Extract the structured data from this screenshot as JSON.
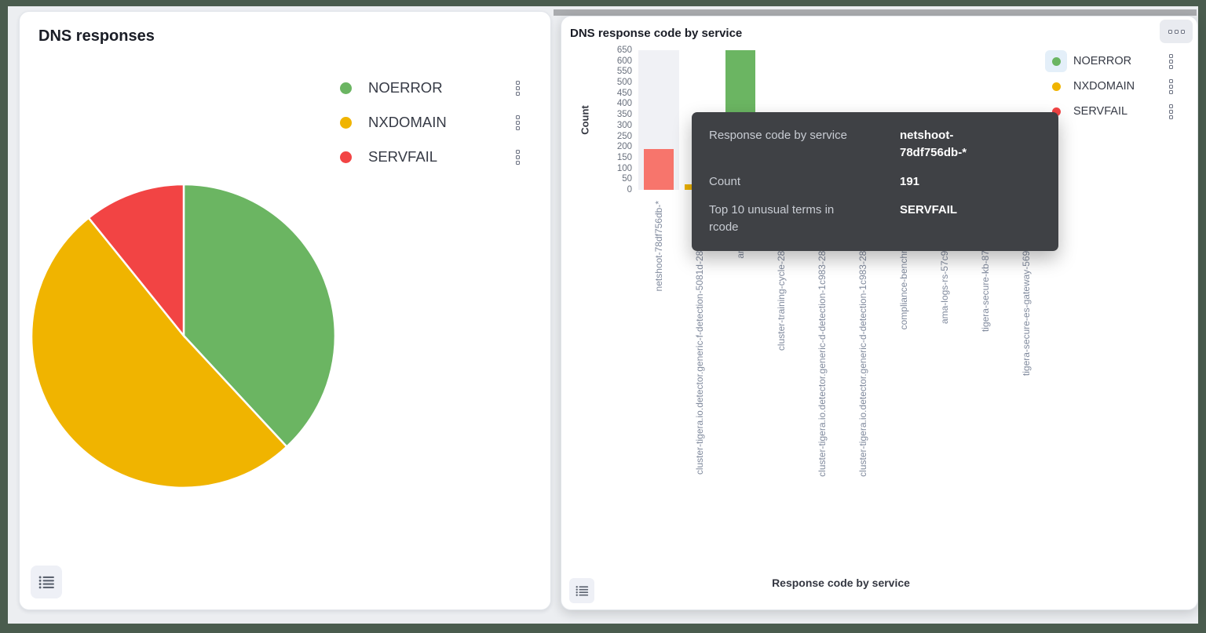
{
  "colors": {
    "green": "#6BB562",
    "yellow": "#F0B400",
    "red": "#F24444",
    "servfail_hover": "#F7756C",
    "frame": "#4A5C4E",
    "canvas_bg": "#ECEEF1",
    "panel_bg": "#FFFFFF",
    "hover_band": "#F0F1F5",
    "legend_highlight": "#E4EFF9",
    "tooltip_bg": "#3F4145",
    "axis_text": "#69707D",
    "x_label_text": "#808A9D"
  },
  "left_panel": {
    "title": "DNS responses",
    "legend": {
      "items": [
        {
          "label": "NOERROR",
          "color_key": "green"
        },
        {
          "label": "NXDOMAIN",
          "color_key": "yellow"
        },
        {
          "label": "SERVFAIL",
          "color_key": "red"
        }
      ]
    }
  },
  "right_panel": {
    "title": "DNS response code by service",
    "y_axis": {
      "label": "Count"
    },
    "x_axis": {
      "title": "Response code by service"
    },
    "legend": {
      "highlighted": "NOERROR",
      "items": [
        {
          "label": "NOERROR",
          "color_key": "green"
        },
        {
          "label": "NXDOMAIN",
          "color_key": "yellow"
        },
        {
          "label": "SERVFAIL",
          "color_key": "red"
        }
      ]
    },
    "tooltip": {
      "rows": [
        {
          "label": "Response code by service",
          "value": "netshoot-78df756db-*"
        },
        {
          "label": "Count",
          "value": "191"
        },
        {
          "label": "Top 10 unusual terms in rcode",
          "value": "SERVFAIL"
        }
      ]
    }
  },
  "chart_data": [
    {
      "type": "pie",
      "title": "DNS responses",
      "labels": [
        "NOERROR",
        "NXDOMAIN",
        "SERVFAIL"
      ],
      "values_pct": [
        38.1,
        51.1,
        10.8
      ],
      "color_keys": [
        "green",
        "yellow",
        "red"
      ],
      "legend_position": "top-right"
    },
    {
      "type": "bar",
      "title": "DNS response code by service",
      "xlabel": "Response code by service",
      "ylabel": "Count",
      "ylim": [
        0,
        650
      ],
      "y_ticks": [
        0,
        50,
        100,
        150,
        200,
        250,
        300,
        350,
        400,
        450,
        500,
        550,
        600,
        650
      ],
      "grid": false,
      "legend_position": "top-right",
      "categories": [
        "netshoot-78df756db-*",
        "cluster-tigera.io.detector.generic-f-detection-5081d-280",
        "am",
        "cluster-training-cycle-280",
        "cluster-tigera.io.detector.generic-d-detection-1c983-280",
        "cluster-tigera.io.detector.generic-d-detection-1c983-280",
        "compliance-benchm",
        "ama-logs-rs-57c9b",
        "tigera-secure-kb-87c",
        "tigera-secure-es-gateway-5698"
      ],
      "series": [
        {
          "name": "NOERROR",
          "color_key": "green",
          "values": [
            null,
            null,
            650,
            null,
            null,
            null,
            null,
            null,
            null,
            null
          ]
        },
        {
          "name": "NXDOMAIN",
          "color_key": "yellow",
          "values": [
            null,
            25,
            null,
            null,
            null,
            null,
            null,
            null,
            null,
            null
          ]
        },
        {
          "name": "SERVFAIL",
          "color_key": "red",
          "values": [
            191,
            null,
            null,
            null,
            null,
            null,
            null,
            null,
            null,
            null
          ]
        }
      ],
      "highlighted_category_index": 0
    }
  ]
}
